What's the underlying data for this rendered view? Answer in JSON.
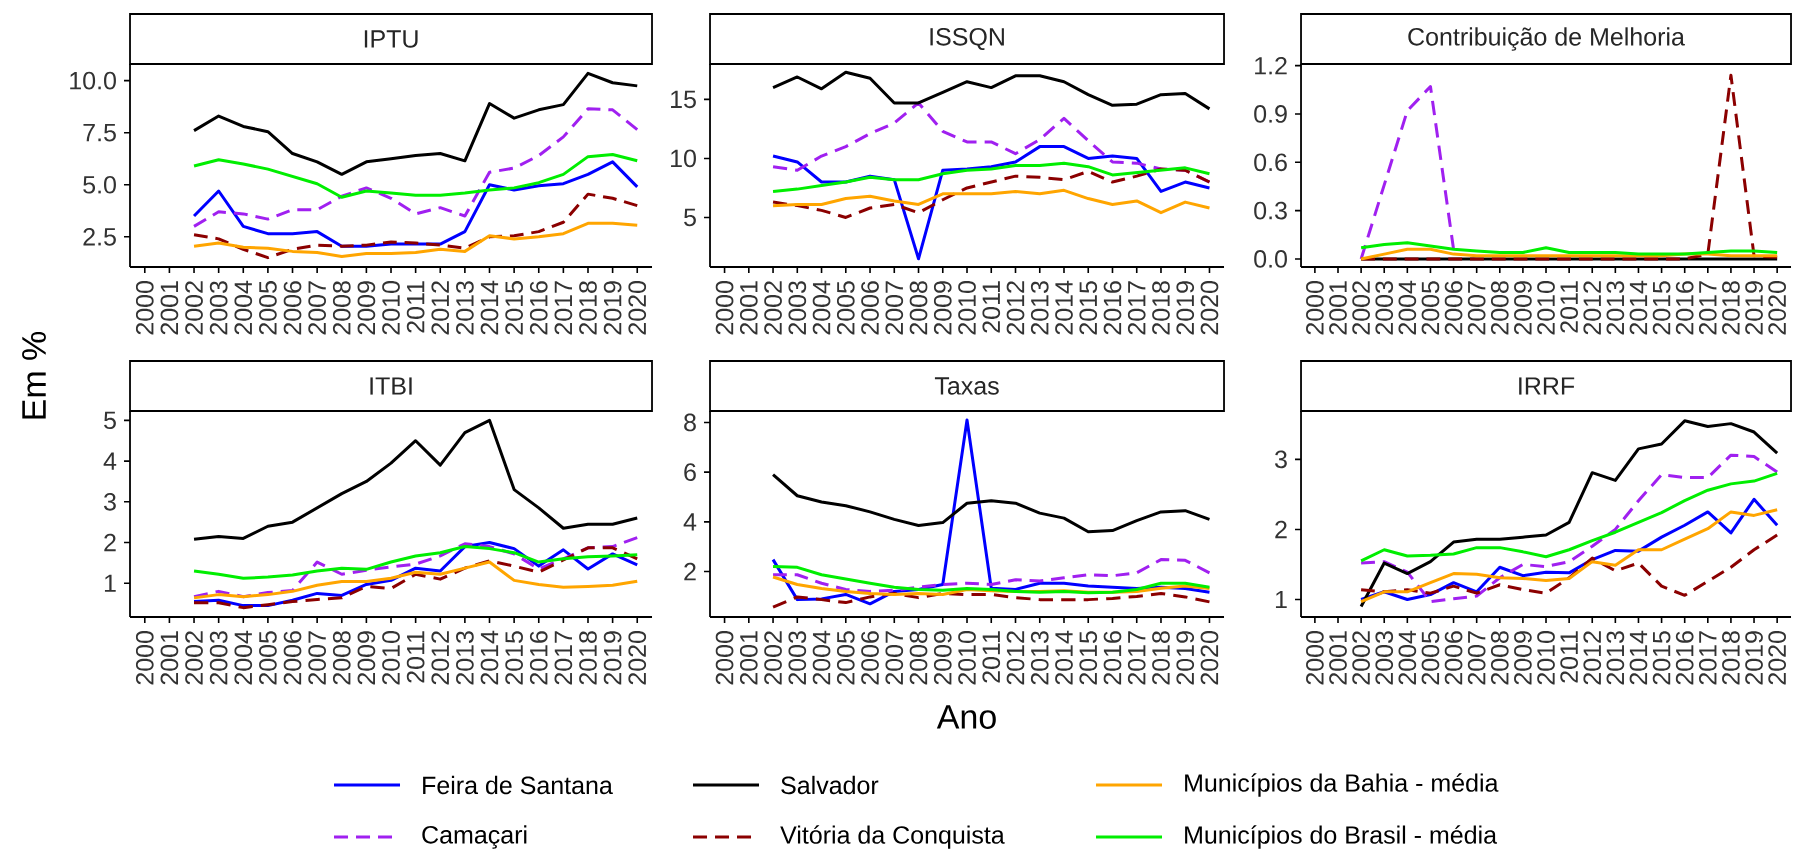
{
  "chart_data": [
    {
      "type": "line",
      "title": "IPTU",
      "ylabel": "Em %",
      "legend": "bottom",
      "categories": [
        "2000",
        "2001",
        "2002",
        "2003",
        "2004",
        "2005",
        "2006",
        "2007",
        "2008",
        "2009",
        "2010",
        "2011",
        "2012",
        "2013",
        "2014",
        "2015",
        "2016",
        "2017",
        "2018",
        "2019",
        "2020"
      ],
      "ylim": [
        1.05,
        10.8
      ],
      "yticks": [
        {
          "value": 2.5,
          "label": "2.5"
        },
        {
          "value": 5,
          "label": "5.0"
        },
        {
          "value": 7.5,
          "label": "7.5"
        },
        {
          "value": 10,
          "label": "10.0"
        }
      ],
      "series": [
        {
          "name": "Feira de Santana",
          "color": "#0000ff",
          "values": [
            null,
            null,
            3.5,
            4.7,
            3.0,
            2.65,
            2.65,
            2.75,
            2.05,
            2.05,
            2.15,
            2.15,
            2.15,
            2.75,
            5.0,
            4.75,
            4.95,
            5.05,
            5.5,
            6.1,
            4.9
          ]
        },
        {
          "name": "Camaçari",
          "color": "#a020f0",
          "line_style": "dashed",
          "values": [
            null,
            null,
            3.0,
            3.7,
            3.6,
            3.35,
            3.8,
            3.8,
            4.45,
            4.85,
            4.35,
            3.6,
            3.9,
            3.5,
            5.6,
            5.8,
            6.4,
            7.3,
            8.65,
            8.6,
            7.65
          ]
        },
        {
          "name": "Salvador",
          "color": "#000000",
          "values": [
            null,
            null,
            7.6,
            8.3,
            7.8,
            7.55,
            6.5,
            6.1,
            5.5,
            6.1,
            6.25,
            6.4,
            6.5,
            6.15,
            8.9,
            8.2,
            8.6,
            8.85,
            10.35,
            9.9,
            9.75
          ]
        },
        {
          "name": "Vitória da Conquista",
          "color": "#8b0000",
          "line_style": "dashed",
          "values": [
            null,
            null,
            2.6,
            2.4,
            1.9,
            1.5,
            1.9,
            2.1,
            2.05,
            2.1,
            2.25,
            2.2,
            2.1,
            1.95,
            2.5,
            2.55,
            2.75,
            3.2,
            4.55,
            4.35,
            4.0
          ]
        },
        {
          "name": "Municípios da Bahia - média",
          "color": "#ffa500",
          "values": [
            null,
            null,
            2.05,
            2.2,
            2.0,
            1.95,
            1.8,
            1.75,
            1.55,
            1.7,
            1.7,
            1.75,
            1.9,
            1.8,
            2.55,
            2.4,
            2.5,
            2.65,
            3.15,
            3.15,
            3.05
          ]
        },
        {
          "name": "Municípios do Brasil - média",
          "color": "#00ee00",
          "values": [
            null,
            null,
            5.9,
            6.2,
            6.0,
            5.75,
            5.4,
            5.05,
            4.4,
            4.7,
            4.6,
            4.5,
            4.5,
            4.6,
            4.75,
            4.85,
            5.1,
            5.5,
            6.35,
            6.45,
            6.15
          ]
        }
      ]
    },
    {
      "type": "line",
      "title": "ISSQN",
      "categories": [
        "2000",
        "2001",
        "2002",
        "2003",
        "2004",
        "2005",
        "2006",
        "2007",
        "2008",
        "2009",
        "2010",
        "2011",
        "2012",
        "2013",
        "2014",
        "2015",
        "2016",
        "2017",
        "2018",
        "2019",
        "2020"
      ],
      "ylim": [
        0.8,
        18
      ],
      "yticks": [
        5,
        10,
        15
      ],
      "series": [
        {
          "color": "#0000ff",
          "values": [
            null,
            null,
            10.2,
            9.7,
            8.0,
            8.0,
            8.5,
            8.2,
            1.5,
            9.0,
            9.1,
            9.3,
            9.7,
            11.0,
            11.0,
            10.0,
            10.2,
            10.0,
            7.2,
            8.0,
            7.5
          ]
        },
        {
          "color": "#a020f0",
          "line_style": "dashed",
          "values": [
            null,
            null,
            9.3,
            9.0,
            10.2,
            11.0,
            12.1,
            13.0,
            14.7,
            12.3,
            11.4,
            11.4,
            10.4,
            11.6,
            13.4,
            11.5,
            9.7,
            9.6,
            9.1,
            9.0,
            8.0
          ]
        },
        {
          "color": "#000000",
          "values": [
            null,
            null,
            16.0,
            16.9,
            15.9,
            17.3,
            16.8,
            14.7,
            14.7,
            15.6,
            16.5,
            16.0,
            17.0,
            17.0,
            16.5,
            15.4,
            14.5,
            14.6,
            15.4,
            15.5,
            14.2
          ]
        },
        {
          "color": "#8b0000",
          "line_style": "dashed",
          "values": [
            null,
            null,
            6.3,
            6.0,
            5.6,
            5.0,
            5.8,
            6.1,
            5.4,
            6.5,
            7.5,
            8.0,
            8.5,
            8.4,
            8.2,
            8.9,
            8.0,
            8.5,
            9.1,
            9.0,
            8.0
          ]
        },
        {
          "color": "#ffa500",
          "values": [
            null,
            null,
            6.0,
            6.1,
            6.1,
            6.6,
            6.8,
            6.4,
            6.1,
            7.0,
            7.0,
            7.0,
            7.2,
            7.0,
            7.3,
            6.6,
            6.1,
            6.4,
            5.4,
            6.3,
            5.8
          ]
        },
        {
          "color": "#00ee00",
          "values": [
            null,
            null,
            7.2,
            7.4,
            7.7,
            8.0,
            8.4,
            8.2,
            8.2,
            8.7,
            9.0,
            9.1,
            9.4,
            9.4,
            9.6,
            9.3,
            8.6,
            8.8,
            9.0,
            9.2,
            8.7
          ]
        }
      ]
    },
    {
      "type": "line",
      "title": "Contribuição de Melhoria",
      "categories": [
        "2000",
        "2001",
        "2002",
        "2003",
        "2004",
        "2005",
        "2006",
        "2007",
        "2008",
        "2009",
        "2010",
        "2011",
        "2012",
        "2013",
        "2014",
        "2015",
        "2016",
        "2017",
        "2018",
        "2019",
        "2020"
      ],
      "ylim": [
        -0.05,
        1.21
      ],
      "yticks": [
        {
          "value": 0,
          "label": "0.0"
        },
        {
          "value": 0.3,
          "label": "0.3"
        },
        {
          "value": 0.6,
          "label": "0.6"
        },
        {
          "value": 0.9,
          "label": "0.9"
        },
        {
          "value": 1.2,
          "label": "1.2"
        }
      ],
      "series": [
        {
          "color": "#a020f0",
          "line_style": "dashed",
          "values": [
            null,
            null,
            0.0,
            0.46,
            0.92,
            1.07,
            0.06,
            null,
            null,
            null,
            null,
            null,
            null,
            null,
            null,
            null,
            null,
            null,
            null,
            null,
            null
          ]
        },
        {
          "color": "#000000",
          "values": [
            null,
            null,
            0,
            0,
            0,
            0,
            0,
            0,
            0,
            0,
            0,
            0,
            0,
            0,
            0,
            0,
            0,
            0,
            0,
            0,
            0
          ]
        },
        {
          "color": "#8b0000",
          "line_style": "dashed",
          "values": [
            null,
            null,
            0,
            0,
            0,
            0,
            0,
            0,
            0,
            0,
            0,
            0,
            0,
            0,
            0,
            0,
            0,
            0.03,
            1.14,
            0.02,
            0.01
          ]
        },
        {
          "color": "#ffa500",
          "values": [
            null,
            null,
            0.0,
            0.03,
            0.06,
            0.06,
            0.03,
            0.02,
            0.02,
            0.02,
            0.02,
            0.02,
            0.02,
            0.02,
            0.02,
            0.02,
            0.03,
            0.03,
            0.02,
            0.02,
            0.02
          ]
        },
        {
          "color": "#00ee00",
          "values": [
            null,
            null,
            0.07,
            0.09,
            0.1,
            0.08,
            0.06,
            0.05,
            0.04,
            0.04,
            0.07,
            0.04,
            0.04,
            0.04,
            0.03,
            0.03,
            0.03,
            0.04,
            0.05,
            0.05,
            0.04
          ]
        }
      ]
    },
    {
      "type": "line",
      "title": "ITBI",
      "categories": [
        "2000",
        "2001",
        "2002",
        "2003",
        "2004",
        "2005",
        "2006",
        "2007",
        "2008",
        "2009",
        "2010",
        "2011",
        "2012",
        "2013",
        "2014",
        "2015",
        "2016",
        "2017",
        "2018",
        "2019",
        "2020"
      ],
      "ylim": [
        0.17,
        5.23
      ],
      "yticks": [
        1,
        2,
        3,
        4,
        5
      ],
      "series": [
        {
          "color": "#0000ff",
          "values": [
            null,
            null,
            0.55,
            0.58,
            0.45,
            0.45,
            0.58,
            0.75,
            0.7,
            0.97,
            1.07,
            1.37,
            1.3,
            1.9,
            2.0,
            1.85,
            1.42,
            1.82,
            1.35,
            1.72,
            1.45
          ]
        },
        {
          "color": "#a020f0",
          "line_style": "dashed",
          "values": [
            null,
            null,
            0.67,
            0.8,
            0.67,
            0.77,
            0.82,
            1.52,
            1.22,
            1.32,
            1.4,
            1.47,
            1.67,
            1.97,
            1.9,
            1.72,
            1.35,
            1.6,
            1.87,
            1.9,
            2.12
          ]
        },
        {
          "color": "#000000",
          "values": [
            null,
            null,
            2.08,
            2.15,
            2.1,
            2.4,
            2.5,
            2.85,
            3.2,
            3.5,
            3.95,
            4.5,
            3.9,
            4.7,
            5.0,
            3.3,
            2.85,
            2.35,
            2.45,
            2.45,
            2.6
          ]
        },
        {
          "color": "#8b0000",
          "line_style": "dashed",
          "values": [
            null,
            null,
            0.52,
            0.52,
            0.4,
            0.47,
            0.55,
            0.6,
            0.64,
            0.92,
            0.87,
            1.22,
            1.1,
            1.37,
            1.55,
            1.42,
            1.27,
            1.57,
            1.87,
            1.87,
            1.6
          ]
        },
        {
          "color": "#ffa500",
          "values": [
            null,
            null,
            0.64,
            0.72,
            0.67,
            0.72,
            0.8,
            0.95,
            1.04,
            1.04,
            1.12,
            1.27,
            1.22,
            1.37,
            1.52,
            1.07,
            0.97,
            0.9,
            0.92,
            0.95,
            1.05
          ]
        },
        {
          "color": "#00ee00",
          "values": [
            null,
            null,
            1.3,
            1.22,
            1.12,
            1.15,
            1.2,
            1.3,
            1.37,
            1.34,
            1.52,
            1.67,
            1.75,
            1.9,
            1.85,
            1.75,
            1.52,
            1.6,
            1.65,
            1.67,
            1.7
          ]
        }
      ]
    },
    {
      "type": "line",
      "title": "Taxas",
      "xlabel": "Ano",
      "categories": [
        "2000",
        "2001",
        "2002",
        "2003",
        "2004",
        "2005",
        "2006",
        "2007",
        "2008",
        "2009",
        "2010",
        "2011",
        "2012",
        "2013",
        "2014",
        "2015",
        "2016",
        "2017",
        "2018",
        "2019",
        "2020"
      ],
      "ylim": [
        0.17,
        8.46
      ],
      "yticks": [
        2,
        4,
        6,
        8
      ],
      "series": [
        {
          "color": "#0000ff",
          "values": [
            null,
            null,
            2.48,
            0.87,
            0.9,
            1.08,
            0.7,
            1.2,
            1.28,
            1.48,
            8.1,
            1.33,
            1.28,
            1.53,
            1.53,
            1.42,
            1.37,
            1.32,
            1.37,
            1.32,
            1.17
          ]
        },
        {
          "color": "#a020f0",
          "line_style": "dashed",
          "values": [
            null,
            null,
            1.87,
            1.87,
            1.53,
            1.28,
            1.2,
            1.25,
            1.37,
            1.48,
            1.53,
            1.48,
            1.67,
            1.62,
            1.75,
            1.87,
            1.83,
            1.95,
            2.48,
            2.45,
            1.95
          ]
        },
        {
          "color": "#000000",
          "values": [
            null,
            null,
            5.9,
            5.05,
            4.8,
            4.65,
            4.4,
            4.1,
            3.85,
            3.97,
            4.75,
            4.85,
            4.75,
            4.35,
            4.15,
            3.6,
            3.65,
            4.05,
            4.4,
            4.45,
            4.1
          ]
        },
        {
          "color": "#8b0000",
          "line_style": "dashed",
          "values": [
            null,
            null,
            0.57,
            0.98,
            0.87,
            0.75,
            0.98,
            1.12,
            0.95,
            1.12,
            1.07,
            1.08,
            0.95,
            0.87,
            0.87,
            0.87,
            0.92,
            1.0,
            1.12,
            0.98,
            0.78
          ]
        },
        {
          "color": "#ffa500",
          "values": [
            null,
            null,
            1.78,
            1.48,
            1.32,
            1.2,
            1.12,
            1.08,
            1.12,
            1.08,
            1.28,
            1.23,
            1.2,
            1.2,
            1.23,
            1.17,
            1.17,
            1.2,
            1.33,
            1.42,
            1.32
          ]
        },
        {
          "color": "#00ee00",
          "values": [
            null,
            null,
            2.2,
            2.17,
            1.87,
            1.7,
            1.53,
            1.37,
            1.28,
            1.25,
            1.32,
            1.28,
            1.2,
            1.17,
            1.2,
            1.15,
            1.17,
            1.28,
            1.53,
            1.53,
            1.37
          ]
        }
      ]
    },
    {
      "type": "line",
      "title": "IRRF",
      "categories": [
        "2000",
        "2001",
        "2002",
        "2003",
        "2004",
        "2005",
        "2006",
        "2007",
        "2008",
        "2009",
        "2010",
        "2011",
        "2012",
        "2013",
        "2014",
        "2015",
        "2016",
        "2017",
        "2018",
        "2019",
        "2020"
      ],
      "ylim": [
        0.75,
        3.69
      ],
      "yticks": [
        1,
        2,
        3
      ],
      "series": [
        {
          "color": "#0000ff",
          "values": [
            null,
            null,
            1.0,
            1.11,
            1.0,
            1.07,
            1.24,
            1.11,
            1.46,
            1.34,
            1.39,
            1.38,
            1.57,
            1.7,
            1.69,
            1.89,
            2.06,
            2.25,
            1.95,
            2.43,
            2.06
          ]
        },
        {
          "color": "#a020f0",
          "line_style": "dashed",
          "values": [
            null,
            null,
            1.52,
            1.54,
            1.39,
            0.97,
            1.01,
            1.05,
            1.31,
            1.5,
            1.47,
            1.54,
            1.76,
            2.0,
            2.41,
            2.78,
            2.74,
            2.74,
            3.06,
            3.04,
            2.82
          ]
        },
        {
          "color": "#000000",
          "values": [
            null,
            null,
            0.9,
            1.52,
            1.37,
            1.54,
            1.82,
            1.86,
            1.86,
            1.89,
            1.92,
            2.1,
            2.81,
            2.7,
            3.15,
            3.22,
            3.55,
            3.47,
            3.51,
            3.39,
            3.09
          ]
        },
        {
          "color": "#8b0000",
          "line_style": "dashed",
          "values": [
            null,
            null,
            1.14,
            1.11,
            1.14,
            1.09,
            1.19,
            1.09,
            1.21,
            1.14,
            1.09,
            1.31,
            1.59,
            1.41,
            1.52,
            1.19,
            1.06,
            1.26,
            1.46,
            1.71,
            1.92
          ]
        },
        {
          "color": "#ffa500",
          "values": [
            null,
            null,
            0.97,
            1.11,
            1.11,
            1.24,
            1.37,
            1.36,
            1.31,
            1.3,
            1.27,
            1.3,
            1.54,
            1.49,
            1.71,
            1.71,
            1.86,
            2.01,
            2.25,
            2.2,
            2.28
          ]
        },
        {
          "color": "#00ee00",
          "values": [
            null,
            null,
            1.55,
            1.71,
            1.62,
            1.63,
            1.65,
            1.74,
            1.74,
            1.68,
            1.61,
            1.71,
            1.84,
            1.96,
            2.1,
            2.24,
            2.41,
            2.56,
            2.65,
            2.69,
            2.8
          ]
        }
      ]
    }
  ]
}
